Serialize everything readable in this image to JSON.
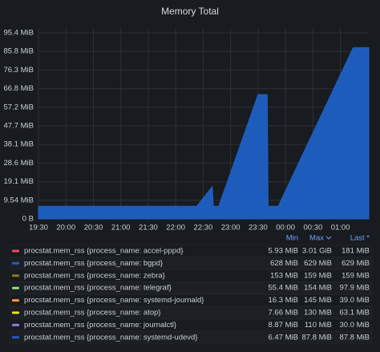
{
  "chart_data": {
    "type": "area",
    "title": "Memory Total",
    "x": [
      "19:30",
      "22:23",
      "22:40",
      "22:41",
      "22:47",
      "23:30",
      "23:40",
      "23:41",
      "23:52",
      "01:14",
      "01:31"
    ],
    "xlim": [
      "19:30",
      "01:31"
    ],
    "xticks": [
      "19:30",
      "20:00",
      "20:30",
      "21:00",
      "21:30",
      "22:00",
      "22:30",
      "23:00",
      "23:30",
      "00:00",
      "00:30",
      "01:00"
    ],
    "ylim": [
      0,
      100000000
    ],
    "yticks": [
      {
        "value": 0,
        "label": "0 B"
      },
      {
        "value": 10000000,
        "label": "9.54 MiB"
      },
      {
        "value": 20000000,
        "label": "19.1 MiB"
      },
      {
        "value": 30000000,
        "label": "28.6 MiB"
      },
      {
        "value": 40000000,
        "label": "38.1 MiB"
      },
      {
        "value": 50000000,
        "label": "47.7 MiB"
      },
      {
        "value": 60000000,
        "label": "57.2 MiB"
      },
      {
        "value": 70000000,
        "label": "66.8 MiB"
      },
      {
        "value": 80000000,
        "label": "76.3 MiB"
      },
      {
        "value": 90000000,
        "label": "85.8 MiB"
      },
      {
        "value": 100000000,
        "label": "95.4 MiB"
      }
    ],
    "grid": true,
    "legend_columns": [
      "Min",
      "Max",
      "Last *"
    ],
    "series": [
      {
        "name": "procstat.mem_rss {process_name: accel-pppd}",
        "color": "#f2495c",
        "legend_values": [
          "5.93 MiB",
          "3.01 GiB",
          "181 MiB"
        ]
      },
      {
        "name": "procstat.mem_rss {process_name: bgpd}",
        "color": "#1f60c4",
        "legend_values": [
          "628 MiB",
          "629 MiB",
          "629 MiB"
        ]
      },
      {
        "name": "procstat.mem_rss {process_name: zebra}",
        "color": "#8f7a1f",
        "legend_values": [
          "153 MiB",
          "159 MiB",
          "159 MiB"
        ]
      },
      {
        "name": "procstat.mem_rss {process_name: telegraf}",
        "color": "#96d98d",
        "legend_values": [
          "55.4 MiB",
          "154 MiB",
          "97.9 MiB"
        ]
      },
      {
        "name": "procstat.mem_rss {process_name: systemd-journald}",
        "color": "#ff9830",
        "legend_values": [
          "16.3 MiB",
          "145 MiB",
          "39.0 MiB"
        ]
      },
      {
        "name": "procstat.mem_rss {process_name: atop}",
        "color": "#fade2a",
        "legend_values": [
          "7.66 MiB",
          "130 MiB",
          "63.1 MiB"
        ]
      },
      {
        "name": "procstat.mem_rss {process_name: journalctl}",
        "color": "#8f7fd9",
        "legend_values": [
          "8.87 MiB",
          "110 MiB",
          "30.0 MiB"
        ]
      },
      {
        "name": "procstat.mem_rss {process_name: systemd-udevd}",
        "color": "#1f60c4",
        "legend_values": [
          "6.47 MiB",
          "87.8 MiB",
          "87.8 MiB"
        ],
        "values": [
          6780000,
          6780000,
          17400000,
          6780000,
          6780000,
          66800000,
          66800000,
          6780000,
          6780000,
          92060000,
          92060000
        ]
      }
    ]
  }
}
